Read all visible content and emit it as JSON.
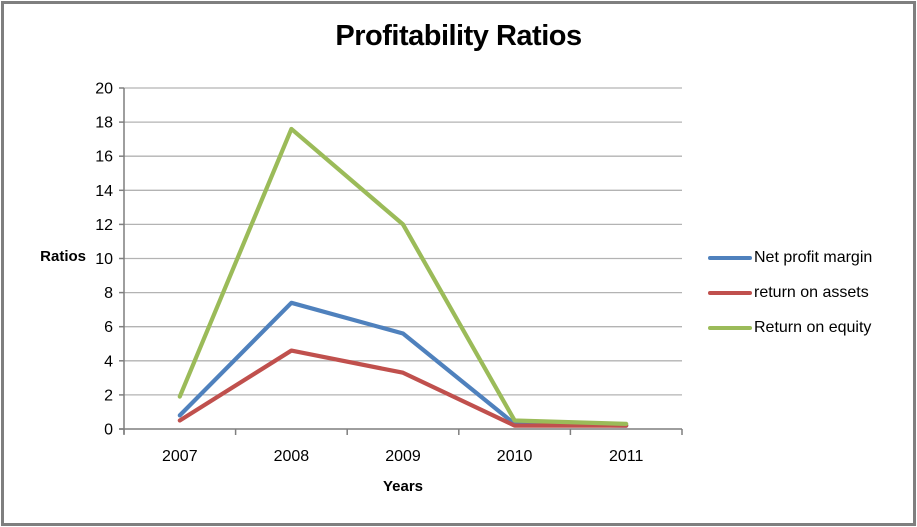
{
  "chart_data": {
    "type": "line",
    "title": "Profitability Ratios",
    "xlabel": "Years",
    "ylabel": "Ratios",
    "categories": [
      "2007",
      "2008",
      "2009",
      "2010",
      "2011"
    ],
    "series": [
      {
        "name": "Net profit margin",
        "color": "#4F81BD",
        "values": [
          0.8,
          7.4,
          5.6,
          0.3,
          0.2
        ]
      },
      {
        "name": "return on assets",
        "color": "#C0504D",
        "values": [
          0.5,
          4.6,
          3.3,
          0.2,
          0.2
        ]
      },
      {
        "name": "Return on equity",
        "color": "#9BBB59",
        "values": [
          1.9,
          17.6,
          12.0,
          0.5,
          0.3
        ]
      }
    ],
    "ylim": [
      0,
      20
    ],
    "ytick_step": 2,
    "grid": true,
    "legend_position": "right",
    "colors": {
      "gridline": "#b3b3b3",
      "axis": "#7f7f7f",
      "text": "#000000",
      "frame_border": "#7f7f7f",
      "background": "#ffffff"
    }
  }
}
